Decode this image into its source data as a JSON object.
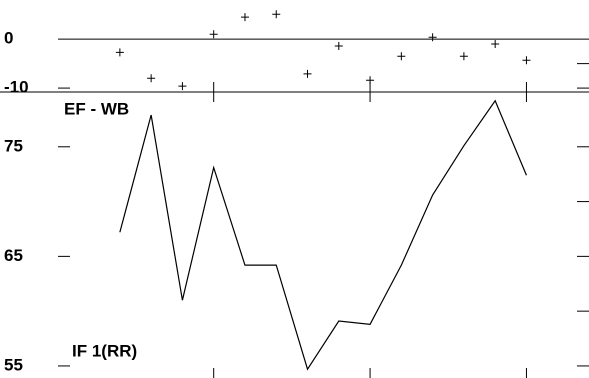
{
  "chart_data": [
    {
      "type": "scatter",
      "label": "EF - WB",
      "x": [
        1,
        2,
        3,
        4,
        5,
        6,
        7,
        8,
        9,
        10,
        11,
        12,
        13,
        14
      ],
      "values": [
        -2.7,
        -8,
        -9.6,
        1,
        4.5,
        5.1,
        -7.1,
        -1.4,
        -8.4,
        -3.5,
        0.4,
        -3.5,
        -1,
        -4.3
      ],
      "color": "#000000",
      "marker": "+",
      "xlim": [
        -0.85,
        16
      ],
      "xticks": [
        4,
        9,
        14
      ],
      "ylim": [
        -10.8,
        8
      ],
      "yticks": [
        -10,
        0
      ],
      "yminorticks": [
        -5
      ]
    },
    {
      "type": "line",
      "label": "IF 1(RR)",
      "x": [
        1,
        2,
        3,
        4,
        5,
        6,
        7,
        8,
        9,
        10,
        11,
        12,
        13,
        14
      ],
      "values": [
        67.2,
        77.9,
        61.0,
        73.1,
        64.2,
        64.2,
        54.7,
        59.1,
        58.8,
        64.2,
        70.6,
        75.1,
        79.2,
        72.4
      ],
      "color": "#000000",
      "xlim": [
        -0.85,
        16
      ],
      "xticks": [
        4,
        9,
        14
      ],
      "ylim": [
        53.9,
        80
      ],
      "yticks": [
        55,
        65,
        75
      ],
      "yminorticks": [
        60,
        70
      ]
    }
  ]
}
